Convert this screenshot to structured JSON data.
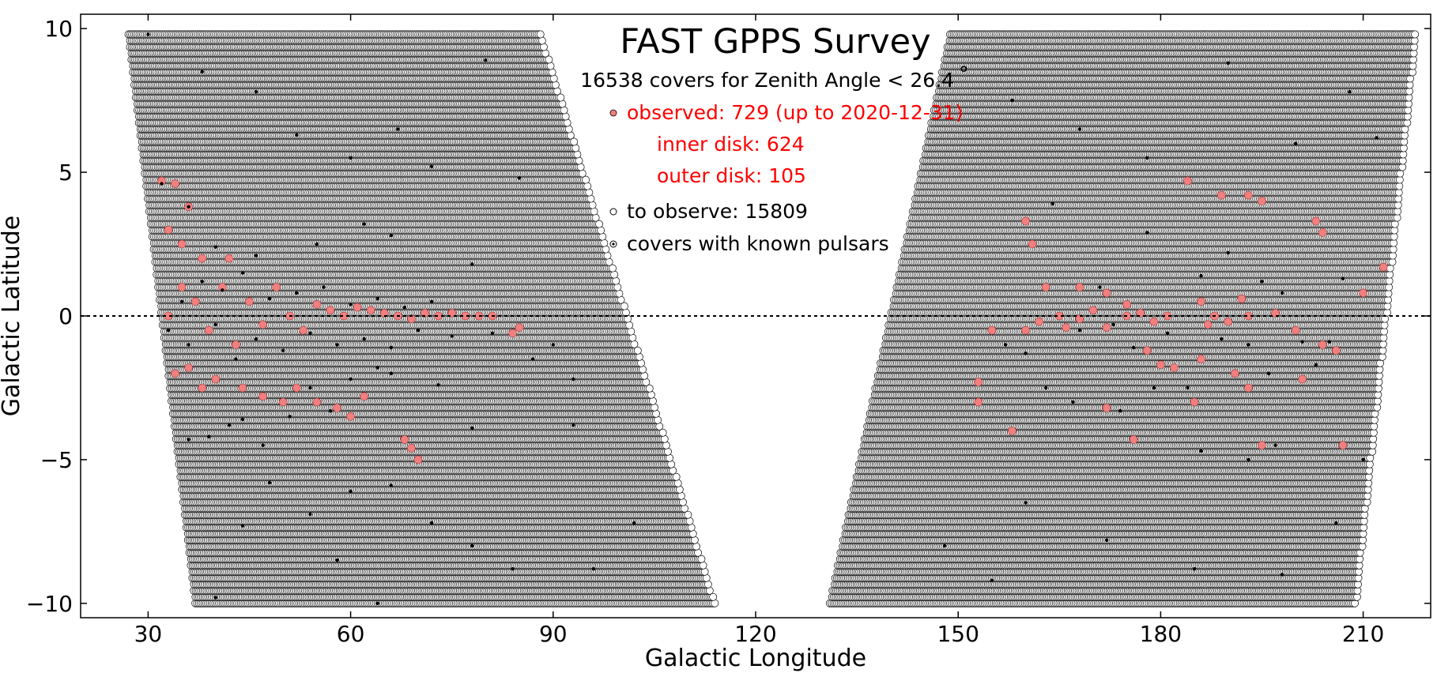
{
  "chart_data": {
    "type": "scatter",
    "title": "FAST GPPS Survey",
    "subtitle": "16538 covers for Zenith Angle < 26.4",
    "subtitle_degree": "°",
    "xlabel": "Galactic Longitude",
    "ylabel": "Galactic Latitude",
    "xlim": [
      20,
      220
    ],
    "ylim": [
      -10.5,
      10.5
    ],
    "xticks": [
      30,
      60,
      90,
      120,
      150,
      180,
      210
    ],
    "xtick_labels": [
      "30",
      "60",
      "90",
      "120",
      "150",
      "180",
      "210"
    ],
    "yticks": [
      -10,
      -5,
      0,
      5,
      10
    ],
    "ytick_labels": [
      "−10",
      "−5",
      "0",
      "5",
      "10"
    ],
    "grid": false,
    "reference_line": {
      "y": 0,
      "style": "dotted"
    },
    "colors": {
      "observed": "#f08080",
      "observed_text": "#ff0000",
      "to_observe": "#ffffff",
      "pulsar_marker": "#000000"
    },
    "legend": {
      "placement": "top-center",
      "observed": "observed: 729 (up to 2020-12-31)",
      "inner_disk": "inner disk: 624",
      "outer_disk": "outer disk: 105",
      "to_observe": "to observe: 15809",
      "known_pulsars": "covers with known pulsars"
    },
    "series": [
      {
        "name": "to observe: 15809",
        "regions": [
          {
            "lat_range": [
              -10,
              10
            ],
            "lon_at_top": [
              27,
              88
            ],
            "lon_at_bottom": [
              37,
              114
            ]
          },
          {
            "lat_range": [
              -10,
              10
            ],
            "lon_at_top": [
              149,
              218
            ],
            "lon_at_bottom": [
              131,
              209
            ]
          }
        ]
      },
      {
        "name": "observed: 729 (up to 2020-12-31)",
        "points": [
          [
            33,
            0
          ],
          [
            35,
            1
          ],
          [
            37,
            0.5
          ],
          [
            39,
            -0.5
          ],
          [
            41,
            1
          ],
          [
            43,
            -1
          ],
          [
            45,
            0.5
          ],
          [
            47,
            -0.3
          ],
          [
            49,
            1
          ],
          [
            51,
            0
          ],
          [
            53,
            -0.5
          ],
          [
            55,
            0.4
          ],
          [
            57,
            0.2
          ],
          [
            59,
            0
          ],
          [
            61,
            0.3
          ],
          [
            63,
            0.2
          ],
          [
            65,
            0.1
          ],
          [
            67,
            0
          ],
          [
            69,
            -0.1
          ],
          [
            71,
            0.1
          ],
          [
            73,
            0
          ],
          [
            75,
            0.1
          ],
          [
            77,
            0
          ],
          [
            79,
            0
          ],
          [
            81,
            0
          ],
          [
            84,
            -0.6
          ],
          [
            85,
            -0.4
          ],
          [
            32,
            4.7
          ],
          [
            34,
            4.6
          ],
          [
            36,
            3.8
          ],
          [
            33,
            3
          ],
          [
            35,
            2.5
          ],
          [
            38,
            2
          ],
          [
            42,
            2
          ],
          [
            34,
            -2
          ],
          [
            36,
            -1.8
          ],
          [
            38,
            -2.5
          ],
          [
            40,
            -2.2
          ],
          [
            44,
            -2.5
          ],
          [
            47,
            -2.8
          ],
          [
            50,
            -3
          ],
          [
            52,
            -2.5
          ],
          [
            55,
            -3
          ],
          [
            58,
            -3.2
          ],
          [
            60,
            -3.5
          ],
          [
            62,
            -2.8
          ],
          [
            68,
            -4.3
          ],
          [
            69,
            -4.6
          ],
          [
            70,
            -5
          ],
          [
            155,
            -0.5
          ],
          [
            160,
            -0.5
          ],
          [
            162,
            -0.2
          ],
          [
            165,
            0
          ],
          [
            168,
            -0.1
          ],
          [
            170,
            0.2
          ],
          [
            172,
            -0.4
          ],
          [
            175,
            0
          ],
          [
            177,
            0.1
          ],
          [
            179,
            -0.2
          ],
          [
            181,
            0
          ],
          [
            187,
            -0.3
          ],
          [
            190,
            -0.2
          ],
          [
            193,
            0
          ],
          [
            197,
            0.1
          ],
          [
            200,
            -0.5
          ],
          [
            204,
            -1
          ],
          [
            206,
            -1.2
          ],
          [
            160,
            3.3
          ],
          [
            161,
            2.5
          ],
          [
            168,
            1
          ],
          [
            172,
            0.8
          ],
          [
            175,
            0.4
          ],
          [
            180,
            -1.7
          ],
          [
            182,
            -1.8
          ],
          [
            185,
            -3
          ],
          [
            186,
            -1.5
          ],
          [
            172,
            -3.2
          ],
          [
            176,
            -4.3
          ],
          [
            184,
            4.7
          ],
          [
            189,
            4.2
          ],
          [
            193,
            4.2
          ],
          [
            195,
            4
          ],
          [
            203,
            3.3
          ],
          [
            204,
            2.9
          ],
          [
            213,
            1.7
          ],
          [
            210,
            0.8
          ],
          [
            158,
            -4
          ],
          [
            153,
            -2.3
          ],
          [
            153,
            -3
          ],
          [
            191,
            -2
          ],
          [
            193,
            -2.5
          ],
          [
            195,
            -4.5
          ],
          [
            201,
            -2.2
          ],
          [
            207,
            -4.5
          ],
          [
            186,
            0.5
          ],
          [
            192,
            0.6
          ],
          [
            188,
            0
          ],
          [
            178,
            -1.2
          ],
          [
            166,
            -0.4
          ],
          [
            163,
            1
          ]
        ]
      },
      {
        "name": "covers with known pulsars",
        "points": [
          [
            33,
            -0.5
          ],
          [
            35,
            0.5
          ],
          [
            36,
            -1
          ],
          [
            38,
            1.2
          ],
          [
            40,
            -0.3
          ],
          [
            41,
            0.9
          ],
          [
            43,
            -1.5
          ],
          [
            44,
            1.5
          ],
          [
            46,
            -0.8
          ],
          [
            48,
            0.6
          ],
          [
            50,
            -1.2
          ],
          [
            52,
            0.8
          ],
          [
            54,
            -0.6
          ],
          [
            56,
            1
          ],
          [
            58,
            -1
          ],
          [
            60,
            0.4
          ],
          [
            62,
            -0.8
          ],
          [
            64,
            0.6
          ],
          [
            66,
            -1.1
          ],
          [
            68,
            0.3
          ],
          [
            70,
            -0.5
          ],
          [
            72,
            0.5
          ],
          [
            75,
            -0.7
          ],
          [
            78,
            1.8
          ],
          [
            81,
            -0.6
          ],
          [
            87,
            -1.5
          ],
          [
            90,
            -1
          ],
          [
            32,
            4.6
          ],
          [
            36,
            3.8
          ],
          [
            40,
            2.4
          ],
          [
            46,
            2.1
          ],
          [
            55,
            2.5
          ],
          [
            62,
            3.2
          ],
          [
            66,
            2.8
          ],
          [
            36,
            -4.3
          ],
          [
            39,
            -4.2
          ],
          [
            42,
            -3.8
          ],
          [
            44,
            -3.6
          ],
          [
            47,
            -4.5
          ],
          [
            51,
            -3.5
          ],
          [
            54,
            -2.5
          ],
          [
            57,
            -3.3
          ],
          [
            60,
            -2.2
          ],
          [
            64,
            -1.8
          ],
          [
            66,
            -2
          ],
          [
            73,
            -2.4
          ],
          [
            78,
            -3.9
          ],
          [
            93,
            -2.2
          ],
          [
            93,
            -3.8
          ],
          [
            30,
            9.8
          ],
          [
            38,
            8.5
          ],
          [
            46,
            7.8
          ],
          [
            52,
            6.3
          ],
          [
            60,
            5.5
          ],
          [
            67,
            6.5
          ],
          [
            72,
            5.2
          ],
          [
            80,
            8.9
          ],
          [
            85,
            4.8
          ],
          [
            48,
            -5.8
          ],
          [
            54,
            -6.9
          ],
          [
            60,
            -6.1
          ],
          [
            66,
            -5.9
          ],
          [
            72,
            -7.2
          ],
          [
            78,
            -8
          ],
          [
            84,
            -8.8
          ],
          [
            40,
            -9.8
          ],
          [
            64,
            -10
          ],
          [
            44,
            -7.3
          ],
          [
            58,
            -8.5
          ],
          [
            96,
            -8.8
          ],
          [
            102,
            -7.2
          ],
          [
            157,
            -1
          ],
          [
            160,
            -1.3
          ],
          [
            164,
            3.9
          ],
          [
            168,
            -0.5
          ],
          [
            171,
            1
          ],
          [
            173,
            -0.3
          ],
          [
            176,
            -1.1
          ],
          [
            178,
            2.9
          ],
          [
            181,
            -0.6
          ],
          [
            184,
            -2.5
          ],
          [
            186,
            1.4
          ],
          [
            189,
            -0.8
          ],
          [
            190,
            2.2
          ],
          [
            193,
            -1
          ],
          [
            195,
            1.2
          ],
          [
            196,
            -2
          ],
          [
            198,
            0.8
          ],
          [
            201,
            -0.9
          ],
          [
            203,
            -1.7
          ],
          [
            205,
            -0.9
          ],
          [
            207,
            1.3
          ],
          [
            163,
            -2.5
          ],
          [
            167,
            -3
          ],
          [
            174,
            -3.3
          ],
          [
            179,
            -2.5
          ],
          [
            186,
            -4.7
          ],
          [
            193,
            -5
          ],
          [
            197,
            -4.5
          ],
          [
            158,
            7.5
          ],
          [
            168,
            6.5
          ],
          [
            178,
            5.5
          ],
          [
            190,
            8.8
          ],
          [
            200,
            6
          ],
          [
            208,
            7.8
          ],
          [
            212,
            6.2
          ],
          [
            160,
            -6.5
          ],
          [
            172,
            -7.8
          ],
          [
            185,
            -8.8
          ],
          [
            198,
            -9
          ],
          [
            206,
            -7.2
          ],
          [
            148,
            -8
          ],
          [
            155,
            -9.2
          ],
          [
            210,
            -5
          ]
        ]
      }
    ]
  }
}
